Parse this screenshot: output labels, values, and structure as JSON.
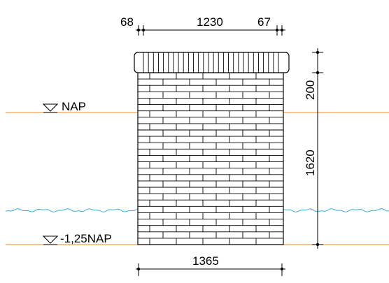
{
  "dimensions": {
    "top_left_offset": "68",
    "top_width": "1230",
    "top_right_offset": "67",
    "cap_height": "200",
    "wall_height": "1620",
    "bottom_width": "1365"
  },
  "levels": {
    "upper": "NAP",
    "lower": "-1,25NAP"
  },
  "colors": {
    "level_line": "#f0a050",
    "water_line": "#38b0e0",
    "ink": "#000000"
  }
}
